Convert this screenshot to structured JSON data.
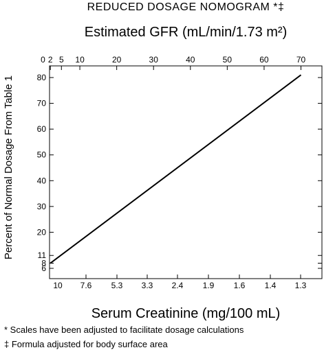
{
  "chart_data": {
    "type": "line",
    "title": "REDUCED DOSAGE NOMOGRAM *‡",
    "top_axis_label": "Estimated GFR (mL/min/1.73 m²)",
    "top_ticks": [
      "0",
      "2",
      "5",
      "10",
      "20",
      "30",
      "40",
      "50",
      "60",
      "70"
    ],
    "xlabel": "Serum Creatinine (mg/100 mL)",
    "bottom_ticks": [
      "10",
      "7.6",
      "5.3",
      "3.3",
      "2.4",
      "1.9",
      "1.6",
      "1.4",
      "1.3"
    ],
    "ylabel": "Percent of Normal Dosage From Table 1",
    "y_ticks": [
      "6",
      "8",
      "11",
      "20",
      "30",
      "40",
      "50",
      "60",
      "70",
      "80"
    ],
    "series": [
      {
        "points": [
          {
            "gfr": 2,
            "percent": 8
          },
          {
            "gfr": 70,
            "percent": 81
          }
        ]
      }
    ],
    "grid": false
  },
  "footnotes": [
    "* Scales have been adjusted to facilitate dosage calculations",
    "‡ Formula adjusted for body surface area"
  ]
}
